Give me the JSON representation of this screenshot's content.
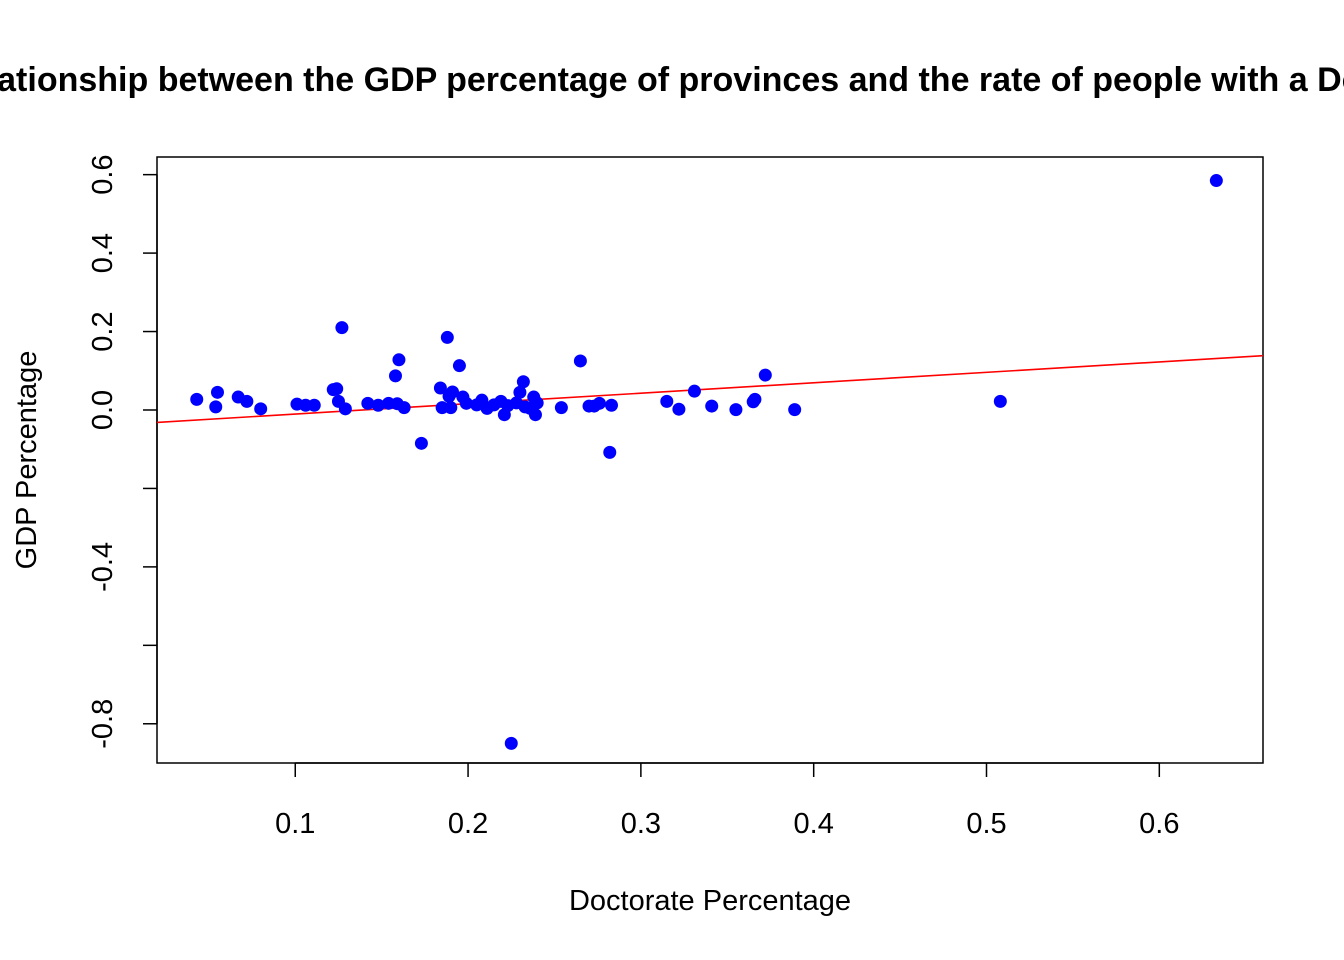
{
  "chart_data": {
    "type": "scatter",
    "title": "Relationship between the GDP percentage of provinces and the rate of people with a Doctorate",
    "xlabel": "Doctorate Percentage",
    "ylabel": "GDP Percentage",
    "xlim": [
      0.02,
      0.66
    ],
    "ylim": [
      -0.9,
      0.645
    ],
    "x_ticks": [
      0.1,
      0.2,
      0.3,
      0.4,
      0.5,
      0.6
    ],
    "x_tick_labels": [
      "0.1",
      "0.2",
      "0.3",
      "0.4",
      "0.5",
      "0.6"
    ],
    "y_ticks": [
      -0.8,
      -0.6,
      -0.4,
      -0.2,
      0.0,
      0.2,
      0.4,
      0.6
    ],
    "y_tick_labels": [
      "-0.8",
      "",
      "-0.4",
      "",
      "0.0",
      "0.2",
      "0.4",
      "0.6"
    ],
    "grid": false,
    "point_color": "#0000ff",
    "line_color": "#ff0000",
    "trend_line": {
      "intercept": -0.037,
      "slope": 0.266
    },
    "points": [
      {
        "x": 0.043,
        "y": 0.027
      },
      {
        "x": 0.054,
        "y": 0.008
      },
      {
        "x": 0.055,
        "y": 0.045
      },
      {
        "x": 0.067,
        "y": 0.033
      },
      {
        "x": 0.072,
        "y": 0.022
      },
      {
        "x": 0.08,
        "y": 0.003
      },
      {
        "x": 0.101,
        "y": 0.015
      },
      {
        "x": 0.106,
        "y": 0.012
      },
      {
        "x": 0.111,
        "y": 0.012
      },
      {
        "x": 0.122,
        "y": 0.052
      },
      {
        "x": 0.124,
        "y": 0.054
      },
      {
        "x": 0.125,
        "y": 0.022
      },
      {
        "x": 0.127,
        "y": 0.21
      },
      {
        "x": 0.129,
        "y": 0.003
      },
      {
        "x": 0.142,
        "y": 0.017
      },
      {
        "x": 0.148,
        "y": 0.012
      },
      {
        "x": 0.154,
        "y": 0.017
      },
      {
        "x": 0.158,
        "y": 0.087
      },
      {
        "x": 0.159,
        "y": 0.016
      },
      {
        "x": 0.16,
        "y": 0.128
      },
      {
        "x": 0.163,
        "y": 0.006
      },
      {
        "x": 0.173,
        "y": -0.085
      },
      {
        "x": 0.184,
        "y": 0.056
      },
      {
        "x": 0.185,
        "y": 0.006
      },
      {
        "x": 0.188,
        "y": 0.185
      },
      {
        "x": 0.189,
        "y": 0.035
      },
      {
        "x": 0.19,
        "y": 0.006
      },
      {
        "x": 0.191,
        "y": 0.046
      },
      {
        "x": 0.195,
        "y": 0.113
      },
      {
        "x": 0.197,
        "y": 0.033
      },
      {
        "x": 0.199,
        "y": 0.017
      },
      {
        "x": 0.205,
        "y": 0.013
      },
      {
        "x": 0.208,
        "y": 0.025
      },
      {
        "x": 0.211,
        "y": 0.004
      },
      {
        "x": 0.215,
        "y": 0.013
      },
      {
        "x": 0.219,
        "y": 0.022
      },
      {
        "x": 0.221,
        "y": -0.012
      },
      {
        "x": 0.223,
        "y": 0.011
      },
      {
        "x": 0.225,
        "y": -0.85
      },
      {
        "x": 0.228,
        "y": 0.018
      },
      {
        "x": 0.23,
        "y": 0.045
      },
      {
        "x": 0.232,
        "y": 0.072
      },
      {
        "x": 0.233,
        "y": 0.008
      },
      {
        "x": 0.236,
        "y": 0.004
      },
      {
        "x": 0.238,
        "y": 0.033
      },
      {
        "x": 0.239,
        "y": -0.012
      },
      {
        "x": 0.24,
        "y": 0.018
      },
      {
        "x": 0.254,
        "y": 0.006
      },
      {
        "x": 0.265,
        "y": 0.125
      },
      {
        "x": 0.27,
        "y": 0.01
      },
      {
        "x": 0.273,
        "y": 0.01
      },
      {
        "x": 0.276,
        "y": 0.017
      },
      {
        "x": 0.282,
        "y": -0.108
      },
      {
        "x": 0.283,
        "y": 0.012
      },
      {
        "x": 0.315,
        "y": 0.022
      },
      {
        "x": 0.322,
        "y": 0.002
      },
      {
        "x": 0.331,
        "y": 0.048
      },
      {
        "x": 0.341,
        "y": 0.01
      },
      {
        "x": 0.355,
        "y": 0.001
      },
      {
        "x": 0.365,
        "y": 0.021
      },
      {
        "x": 0.366,
        "y": 0.027
      },
      {
        "x": 0.372,
        "y": 0.089
      },
      {
        "x": 0.389,
        "y": 0.001
      },
      {
        "x": 0.508,
        "y": 0.022
      },
      {
        "x": 0.633,
        "y": 0.585
      }
    ]
  }
}
